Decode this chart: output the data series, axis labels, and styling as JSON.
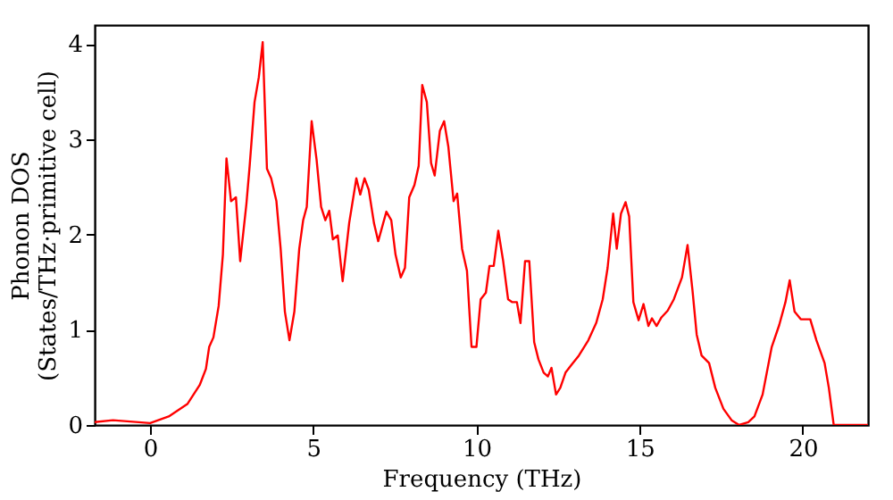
{
  "chart_data": {
    "type": "line",
    "xlabel": "Frequency (THz)",
    "ylabel": "Phonon DOS\n(States/THz·primitive cell)",
    "x": [
      -1.7,
      -1.14,
      0,
      0.57,
      1.14,
      1.52,
      1.71,
      1.81,
      1.94,
      2.1,
      2.23,
      2.34,
      2.48,
      2.63,
      2.76,
      2.95,
      3.05,
      3.2,
      3.33,
      3.45,
      3.58,
      3.71,
      3.87,
      4.0,
      4.13,
      4.27,
      4.42,
      4.57,
      4.69,
      4.8,
      4.95,
      5.1,
      5.24,
      5.37,
      5.49,
      5.6,
      5.75,
      5.9,
      6.1,
      6.32,
      6.44,
      6.57,
      6.7,
      6.86,
      6.99,
      7.24,
      7.39,
      7.52,
      7.68,
      7.81,
      7.94,
      8.1,
      8.23,
      8.34,
      8.48,
      8.61,
      8.72,
      8.88,
      9.01,
      9.14,
      9.3,
      9.41,
      9.56,
      9.71,
      9.85,
      10.0,
      10.13,
      10.29,
      10.4,
      10.53,
      10.67,
      10.82,
      10.97,
      11.1,
      11.24,
      11.35,
      11.49,
      11.62,
      11.77,
      11.9,
      12.06,
      12.19,
      12.3,
      12.44,
      12.57,
      12.73,
      12.91,
      13.14,
      13.43,
      13.67,
      13.87,
      14.02,
      14.19,
      14.3,
      14.43,
      14.57,
      14.68,
      14.81,
      14.97,
      15.12,
      15.27,
      15.38,
      15.52,
      15.67,
      15.86,
      16.05,
      16.3,
      16.47,
      16.62,
      16.75,
      16.9,
      17.13,
      17.32,
      17.57,
      17.82,
      18.05,
      18.33,
      18.52,
      18.77,
      19.05,
      19.28,
      19.47,
      19.6,
      19.75,
      19.94,
      20.23,
      20.42,
      20.67,
      20.8,
      20.95,
      22.0
    ],
    "series": [
      {
        "color": "#ff0000",
        "values": [
          0.03,
          0.05,
          0.02,
          0.09,
          0.22,
          0.42,
          0.59,
          0.82,
          0.92,
          1.25,
          1.79,
          2.8,
          2.35,
          2.39,
          1.72,
          2.32,
          2.72,
          3.39,
          3.65,
          4.02,
          2.69,
          2.59,
          2.35,
          1.85,
          1.19,
          0.89,
          1.19,
          1.85,
          2.15,
          2.29,
          3.19,
          2.79,
          2.29,
          2.15,
          2.25,
          1.95,
          1.99,
          1.51,
          2.12,
          2.59,
          2.42,
          2.59,
          2.47,
          2.12,
          1.93,
          2.24,
          2.15,
          1.79,
          1.55,
          1.65,
          2.39,
          2.52,
          2.72,
          3.57,
          3.39,
          2.75,
          2.62,
          3.09,
          3.19,
          2.92,
          2.35,
          2.43,
          1.85,
          1.62,
          0.82,
          0.82,
          1.32,
          1.39,
          1.67,
          1.67,
          2.04,
          1.72,
          1.32,
          1.29,
          1.29,
          1.07,
          1.72,
          1.72,
          0.87,
          0.69,
          0.55,
          0.51,
          0.6,
          0.32,
          0.39,
          0.55,
          0.63,
          0.73,
          0.89,
          1.07,
          1.32,
          1.65,
          2.22,
          1.85,
          2.22,
          2.34,
          2.19,
          1.29,
          1.1,
          1.27,
          1.04,
          1.12,
          1.04,
          1.13,
          1.2,
          1.32,
          1.55,
          1.89,
          1.42,
          0.95,
          0.73,
          0.65,
          0.39,
          0.17,
          0.05,
          0.0,
          0.03,
          0.09,
          0.32,
          0.82,
          1.05,
          1.29,
          1.52,
          1.19,
          1.11,
          1.11,
          0.89,
          0.65,
          0.39,
          0.0,
          0.0
        ]
      }
    ],
    "xlim": [
      -1.7,
      22.0
    ],
    "ylim": [
      0,
      4.2
    ],
    "xticks": [
      0,
      5,
      10,
      15,
      20
    ],
    "yticks": [
      0,
      1,
      2,
      3,
      4
    ],
    "grid": false,
    "marker": "none",
    "line_style": "solid"
  }
}
